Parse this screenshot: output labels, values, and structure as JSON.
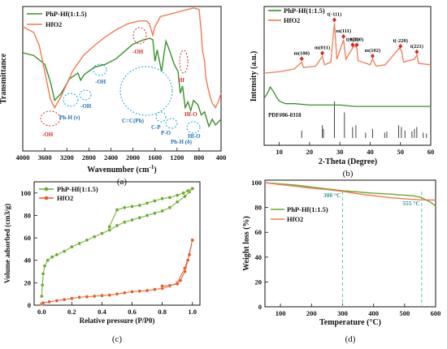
{
  "chart_data": [
    {
      "panel": "(a)",
      "type": "line",
      "xlabel": "Wavenumber (cm-1)",
      "xlabel_main": "Wavenumber (cm",
      "xlabel_sup": "-1",
      "xlabel_close": ")",
      "ylabel": "Transmittance",
      "xlim": [
        4000,
        400
      ],
      "x_reversed": true,
      "x_ticks": [
        4000,
        3600,
        3200,
        2800,
        2400,
        2000,
        1600,
        1200,
        800,
        400
      ],
      "series": [
        {
          "name": "PhP-Hf(1:1.5)",
          "color": "#3a8f2a",
          "points": [
            [
              4000,
              0.68
            ],
            [
              3800,
              0.66
            ],
            [
              3600,
              0.6
            ],
            [
              3500,
              0.48
            ],
            [
              3420,
              0.35
            ],
            [
              3300,
              0.4
            ],
            [
              3150,
              0.5
            ],
            [
              3000,
              0.54
            ],
            [
              2950,
              0.49
            ],
            [
              2880,
              0.53
            ],
            [
              2700,
              0.58
            ],
            [
              2500,
              0.6
            ],
            [
              2300,
              0.64
            ],
            [
              2150,
              0.69
            ],
            [
              2000,
              0.74
            ],
            [
              1800,
              0.77
            ],
            [
              1700,
              0.78
            ],
            [
              1640,
              0.77
            ],
            [
              1600,
              0.62
            ],
            [
              1560,
              0.7
            ],
            [
              1480,
              0.55
            ],
            [
              1440,
              0.66
            ],
            [
              1400,
              0.76
            ],
            [
              1350,
              0.71
            ],
            [
              1250,
              0.6
            ],
            [
              1180,
              0.55
            ],
            [
              1140,
              0.4
            ],
            [
              1100,
              0.45
            ],
            [
              1050,
              0.3
            ],
            [
              1000,
              0.34
            ],
            [
              950,
              0.28
            ],
            [
              900,
              0.35
            ],
            [
              820,
              0.32
            ],
            [
              760,
              0.25
            ],
            [
              700,
              0.27
            ],
            [
              620,
              0.17
            ],
            [
              560,
              0.22
            ],
            [
              500,
              0.18
            ],
            [
              400,
              0.22
            ]
          ]
        },
        {
          "name": "HfO2",
          "color": "#f07a52",
          "points": [
            [
              4000,
              0.86
            ],
            [
              3800,
              0.82
            ],
            [
              3700,
              0.73
            ],
            [
              3600,
              0.55
            ],
            [
              3500,
              0.36
            ],
            [
              3420,
              0.3
            ],
            [
              3300,
              0.38
            ],
            [
              3100,
              0.55
            ],
            [
              2900,
              0.66
            ],
            [
              2700,
              0.73
            ],
            [
              2500,
              0.79
            ],
            [
              2300,
              0.84
            ],
            [
              2100,
              0.88
            ],
            [
              1900,
              0.9
            ],
            [
              1750,
              0.9
            ],
            [
              1700,
              0.88
            ],
            [
              1640,
              0.8
            ],
            [
              1600,
              0.86
            ],
            [
              1500,
              0.93
            ],
            [
              1300,
              0.95
            ],
            [
              1100,
              0.97
            ],
            [
              900,
              0.99
            ],
            [
              800,
              0.98
            ],
            [
              760,
              0.83
            ],
            [
              740,
              0.7
            ],
            [
              700,
              0.62
            ],
            [
              680,
              0.52
            ],
            [
              640,
              0.44
            ],
            [
              600,
              0.38
            ],
            [
              560,
              0.33
            ],
            [
              500,
              0.3
            ],
            [
              450,
              0.34
            ],
            [
              400,
              0.4
            ]
          ]
        }
      ],
      "legend": [
        "PhP-Hf(1:1.5)",
        "HfO2"
      ],
      "legend_position": "top-left",
      "annotations": {
        "oh_bottom": "-OH",
        "ph_h_v": "Ph-H (ν)",
        "oh_mid": "-OH",
        "oh_high": "-OH",
        "oh_top": "-OH",
        "cc_ph": "C=C(Ph)",
        "c_p": "C-P",
        "p_o": "P-O",
        "ph_h_delta": "Ph-H (δ)",
        "hf": "Hf",
        "hf_o_1": "Hf-O",
        "hf_o_2": "Hf-O"
      }
    },
    {
      "panel": "(b)",
      "type": "line",
      "xlabel": "2-Theta (Degree)",
      "ylabel": "Intensity (a.u.)",
      "xlim": [
        5,
        60
      ],
      "x_ticks": [
        10,
        20,
        30,
        40,
        50,
        60
      ],
      "series": [
        {
          "name": "PhP-Hf(1:1.5)",
          "color": "#3a8f2a",
          "points": [
            [
              5,
              0.34
            ],
            [
              6,
              0.37
            ],
            [
              7,
              0.42
            ],
            [
              8,
              0.39
            ],
            [
              9,
              0.35
            ],
            [
              10,
              0.32
            ],
            [
              12,
              0.3
            ],
            [
              15,
              0.3
            ],
            [
              20,
              0.29
            ],
            [
              25,
              0.29
            ],
            [
              30,
              0.29
            ],
            [
              35,
              0.28
            ],
            [
              40,
              0.28
            ],
            [
              45,
              0.28
            ],
            [
              50,
              0.28
            ],
            [
              55,
              0.28
            ],
            [
              60,
              0.28
            ]
          ]
        },
        {
          "name": "HfO2",
          "color": "#f07a52",
          "points": [
            [
              5,
              0.52
            ],
            [
              10,
              0.53
            ],
            [
              15,
              0.55
            ],
            [
              17.4,
              0.6
            ],
            [
              18,
              0.56
            ],
            [
              22,
              0.57
            ],
            [
              24.2,
              0.64
            ],
            [
              25,
              0.58
            ],
            [
              27,
              0.6
            ],
            [
              28.2,
              0.88
            ],
            [
              29,
              0.62
            ],
            [
              31.2,
              0.76
            ],
            [
              32,
              0.62
            ],
            [
              34.2,
              0.7
            ],
            [
              35,
              0.72
            ],
            [
              35.6,
              0.7
            ],
            [
              36,
              0.61
            ],
            [
              40,
              0.58
            ],
            [
              40.8,
              0.62
            ],
            [
              42,
              0.57
            ],
            [
              45,
              0.58
            ],
            [
              49.6,
              0.7
            ],
            [
              50.4,
              0.68
            ],
            [
              51,
              0.6
            ],
            [
              54.6,
              0.62
            ],
            [
              55.4,
              0.65
            ],
            [
              56,
              0.59
            ],
            [
              60,
              0.58
            ]
          ]
        }
      ],
      "reference_label": "PDF#06-0318",
      "reference_sticks": [
        [
          17.4,
          0.2
        ],
        [
          24.2,
          0.35
        ],
        [
          24.6,
          0.25
        ],
        [
          28.2,
          1.0
        ],
        [
          31.5,
          0.7
        ],
        [
          34.2,
          0.3
        ],
        [
          35.3,
          0.35
        ],
        [
          38.5,
          0.15
        ],
        [
          40.8,
          0.25
        ],
        [
          44.8,
          0.15
        ],
        [
          45.5,
          0.18
        ],
        [
          49.4,
          0.35
        ],
        [
          50.3,
          0.3
        ],
        [
          51.5,
          0.2
        ],
        [
          53.8,
          0.18
        ],
        [
          54.6,
          0.25
        ],
        [
          55.4,
          0.3
        ],
        [
          57.5,
          0.15
        ],
        [
          58.6,
          0.12
        ]
      ],
      "peak_labels": [
        {
          "label": "m(100)",
          "x": 17.4
        },
        {
          "label": "m(011)",
          "x": 24.2
        },
        {
          "label": "t(-111)",
          "x": 28.2
        },
        {
          "label": "m(111)",
          "x": 31.2
        },
        {
          "label": "t(020)",
          "x": 34.2
        },
        {
          "label": "t(200)",
          "x": 35.6
        },
        {
          "label": "m(102)",
          "x": 40.8
        },
        {
          "label": "t(-220)",
          "x": 50.0
        },
        {
          "label": "t(221)",
          "x": 55.4
        }
      ],
      "legend": [
        "PhP-Hf(1:1.5)",
        "HfO2"
      ],
      "legend_position": "top-left"
    },
    {
      "panel": "(c)",
      "type": "scatter",
      "xlabel": "Relative pressure (P/P0)",
      "ylabel": "Volume adsorbed (cm3/g)",
      "xlim": [
        -0.05,
        1.05
      ],
      "ylim": [
        0,
        110
      ],
      "x_ticks": [
        0.0,
        0.2,
        0.4,
        0.6,
        0.8,
        1.0
      ],
      "y_ticks": [
        0,
        20,
        40,
        60,
        80,
        100
      ],
      "series": [
        {
          "name": "PhP-Hf(1:1.5) adsorption",
          "color": "#6aaa2a",
          "points": [
            [
              0.0,
              8
            ],
            [
              0.005,
              18
            ],
            [
              0.01,
              28
            ],
            [
              0.02,
              35
            ],
            [
              0.04,
              40
            ],
            [
              0.07,
              43
            ],
            [
              0.1,
              45
            ],
            [
              0.15,
              48
            ],
            [
              0.2,
              52
            ],
            [
              0.25,
              55
            ],
            [
              0.3,
              58
            ],
            [
              0.35,
              61
            ],
            [
              0.4,
              64
            ],
            [
              0.45,
              67
            ],
            [
              0.5,
              71
            ],
            [
              0.55,
              74
            ],
            [
              0.6,
              76
            ],
            [
              0.65,
              78
            ],
            [
              0.7,
              80
            ],
            [
              0.75,
              82
            ],
            [
              0.8,
              84
            ],
            [
              0.85,
              87
            ],
            [
              0.9,
              92
            ],
            [
              0.95,
              97
            ],
            [
              0.98,
              101
            ],
            [
              1.0,
              104
            ]
          ]
        },
        {
          "name": "PhP-Hf(1:1.5) desorption",
          "color": "#6aaa2a",
          "points": [
            [
              1.0,
              104
            ],
            [
              0.97,
              102
            ],
            [
              0.94,
              100
            ],
            [
              0.9,
              98
            ],
            [
              0.85,
              96
            ],
            [
              0.8,
              95
            ],
            [
              0.75,
              93
            ],
            [
              0.7,
              91
            ],
            [
              0.65,
              89
            ],
            [
              0.6,
              88
            ],
            [
              0.55,
              87
            ],
            [
              0.5,
              85
            ],
            [
              0.45,
              70
            ]
          ]
        },
        {
          "name": "HfO2 adsorption",
          "color": "#e8582a",
          "points": [
            [
              0.0,
              1
            ],
            [
              0.01,
              2
            ],
            [
              0.05,
              3
            ],
            [
              0.1,
              4
            ],
            [
              0.15,
              5
            ],
            [
              0.2,
              6
            ],
            [
              0.25,
              7
            ],
            [
              0.3,
              7.5
            ],
            [
              0.35,
              8
            ],
            [
              0.4,
              8.5
            ],
            [
              0.45,
              9
            ],
            [
              0.5,
              10
            ],
            [
              0.55,
              11
            ],
            [
              0.6,
              12
            ],
            [
              0.65,
              12.5
            ],
            [
              0.7,
              13
            ],
            [
              0.75,
              14
            ],
            [
              0.8,
              15
            ],
            [
              0.85,
              17
            ],
            [
              0.9,
              20
            ],
            [
              0.95,
              33
            ],
            [
              0.98,
              45
            ],
            [
              1.0,
              58
            ]
          ]
        },
        {
          "name": "HfO2 desorption",
          "color": "#e8582a",
          "points": [
            [
              1.0,
              58
            ],
            [
              0.97,
              40
            ],
            [
              0.95,
              30
            ],
            [
              0.92,
              22
            ],
            [
              0.9,
              19
            ],
            [
              0.85,
              17.5
            ],
            [
              0.8,
              17
            ]
          ]
        }
      ],
      "legend": [
        "PhP-Hf(1:1.5)",
        "HfO2"
      ],
      "legend_position": "top-left"
    },
    {
      "panel": "(d)",
      "type": "line",
      "xlabel": "Temperature (°C)",
      "ylabel": "Weight loss (%)",
      "xlim": [
        50,
        600
      ],
      "ylim": [
        0,
        102
      ],
      "x_ticks": [
        100,
        200,
        300,
        400,
        500,
        600
      ],
      "y_ticks": [
        0,
        20,
        40,
        60,
        80,
        100
      ],
      "series": [
        {
          "name": "PhP-Hf(1:1.5)",
          "color": "#6aaa2a",
          "points": [
            [
              50,
              100
            ],
            [
              100,
              99
            ],
            [
              150,
              98
            ],
            [
              200,
              96.5
            ],
            [
              250,
              95
            ],
            [
              300,
              93.5
            ],
            [
              350,
              92.5
            ],
            [
              400,
              91.5
            ],
            [
              450,
              90.8
            ],
            [
              500,
              90
            ],
            [
              530,
              89.3
            ],
            [
              555,
              88
            ],
            [
              570,
              86
            ],
            [
              585,
              84
            ],
            [
              600,
              81
            ]
          ]
        },
        {
          "name": "HfO2",
          "color": "#f07a52",
          "points": [
            [
              50,
              100
            ],
            [
              100,
              98.5
            ],
            [
              150,
              97
            ],
            [
              200,
              95.5
            ],
            [
              250,
              94.5
            ],
            [
              300,
              93
            ],
            [
              350,
              91
            ],
            [
              400,
              89.5
            ],
            [
              450,
              88
            ],
            [
              500,
              87
            ],
            [
              550,
              86.2
            ],
            [
              600,
              86
            ]
          ]
        }
      ],
      "markers": [
        {
          "label": "300 °C",
          "x": 300
        },
        {
          "label": "555 °C",
          "x": 555
        }
      ],
      "legend": [
        "PhP-Hf(1:1.5)",
        "HfO2"
      ],
      "legend_position": "center-left"
    }
  ]
}
